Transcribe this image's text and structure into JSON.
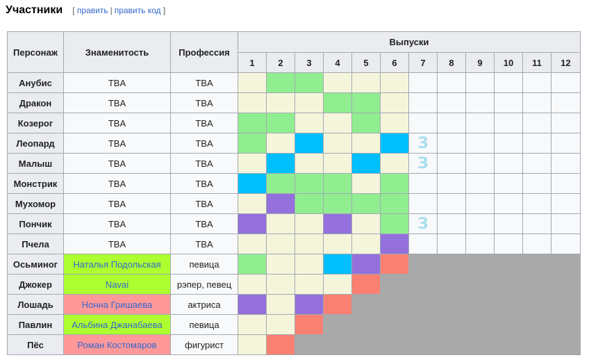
{
  "heading": {
    "title": "Участники",
    "edit": "править",
    "edit_code": "править код",
    "open": "[",
    "sep": "|",
    "close": "]"
  },
  "colors": {
    "cream": "#f5f5dc",
    "green": "#90ee90",
    "blue": "#00bfff",
    "purple": "#9370db",
    "salmon": "#fa8072",
    "gray": "#a9a9a9",
    "lime": "#adff2f",
    "pink": "#ff9999",
    "plain": "#f8f9fa"
  },
  "table": {
    "col_character": "Персонаж",
    "col_celebrity": "Знаменитость",
    "col_profession": "Профессия",
    "col_episodes": "Выпуски",
    "episodes": [
      "1",
      "2",
      "3",
      "4",
      "5",
      "6",
      "7",
      "8",
      "9",
      "10",
      "11",
      "12"
    ],
    "rows": [
      {
        "character": "Анубис",
        "celebrity": "TBA",
        "celeb_bg": "plain",
        "profession": "TBA",
        "cells": [
          "cream",
          "green",
          "green",
          "cream",
          "cream",
          "cream",
          "",
          "",
          "",
          "",
          "",
          ""
        ]
      },
      {
        "character": "Дракон",
        "celebrity": "TBA",
        "celeb_bg": "plain",
        "profession": "TBA",
        "cells": [
          "cream",
          "cream",
          "cream",
          "green",
          "green",
          "cream",
          "",
          "",
          "",
          "",
          "",
          ""
        ]
      },
      {
        "character": "Козерог",
        "celebrity": "TBA",
        "celeb_bg": "plain",
        "profession": "TBA",
        "cells": [
          "green",
          "green",
          "cream",
          "cream",
          "green",
          "cream",
          "",
          "",
          "",
          "",
          "",
          ""
        ]
      },
      {
        "character": "Леопард",
        "celebrity": "TBA",
        "celeb_bg": "plain",
        "profession": "TBA",
        "cells": [
          "green",
          "cream",
          "blue",
          "cream",
          "cream",
          "blue",
          "З",
          "",
          "",
          "",
          "",
          ""
        ]
      },
      {
        "character": "Малыш",
        "celebrity": "TBA",
        "celeb_bg": "plain",
        "profession": "TBA",
        "cells": [
          "cream",
          "blue",
          "cream",
          "cream",
          "blue",
          "cream",
          "З",
          "",
          "",
          "",
          "",
          ""
        ]
      },
      {
        "character": "Монстрик",
        "celebrity": "TBA",
        "celeb_bg": "plain",
        "profession": "TBA",
        "cells": [
          "blue",
          "green",
          "green",
          "green",
          "cream",
          "green",
          "",
          "",
          "",
          "",
          "",
          ""
        ]
      },
      {
        "character": "Мухомор",
        "celebrity": "TBA",
        "celeb_bg": "plain",
        "profession": "TBA",
        "cells": [
          "cream",
          "purple",
          "green",
          "green",
          "green",
          "green",
          "",
          "",
          "",
          "",
          "",
          ""
        ]
      },
      {
        "character": "Пончик",
        "celebrity": "TBA",
        "celeb_bg": "plain",
        "profession": "TBA",
        "cells": [
          "purple",
          "cream",
          "cream",
          "purple",
          "cream",
          "green",
          "З",
          "",
          "",
          "",
          "",
          ""
        ]
      },
      {
        "character": "Пчела",
        "celebrity": "TBA",
        "celeb_bg": "plain",
        "profession": "TBA",
        "cells": [
          "cream",
          "cream",
          "cream",
          "cream",
          "cream",
          "purple",
          "",
          "",
          "",
          "",
          "",
          ""
        ]
      },
      {
        "character": "Осьминог",
        "celebrity": "Наталья Подольская",
        "celeb_bg": "lime",
        "profession": "певица",
        "cells": [
          "green",
          "cream",
          "cream",
          "blue",
          "purple",
          "salmon"
        ],
        "out_from": 7
      },
      {
        "character": "Джокер",
        "celebrity": "Navai",
        "celeb_bg": "lime",
        "profession": "рэпер, певец",
        "cells": [
          "cream",
          "cream",
          "cream",
          "cream",
          "salmon"
        ],
        "out_from": 6
      },
      {
        "character": "Лошадь",
        "celebrity": "Нонна Гришаева",
        "celeb_bg": "pink",
        "profession": "актриса",
        "cells": [
          "purple",
          "cream",
          "purple",
          "salmon"
        ],
        "out_from": 5
      },
      {
        "character": "Павлин",
        "celebrity": "Альбина Джанабаева",
        "celeb_bg": "lime",
        "profession": "певица",
        "cells": [
          "cream",
          "cream",
          "salmon"
        ],
        "out_from": 4
      },
      {
        "character": "Пёс",
        "celebrity": "Роман Костомаров",
        "celeb_bg": "pink",
        "profession": "фигурист",
        "cells": [
          "cream",
          "salmon"
        ],
        "out_from": 3
      }
    ]
  }
}
